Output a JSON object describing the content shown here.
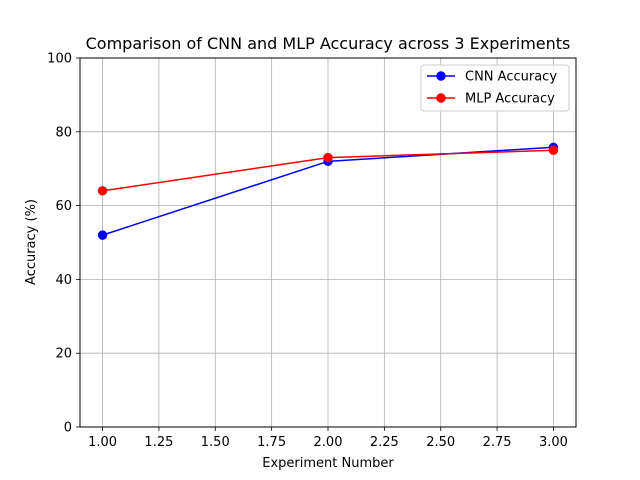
{
  "chart_data": {
    "type": "line",
    "title": "Comparison of CNN and MLP Accuracy across 3 Experiments",
    "xlabel": "Experiment Number",
    "ylabel": "Accuracy (%)",
    "xlim": [
      0.9,
      3.1
    ],
    "ylim": [
      0,
      100
    ],
    "x_ticks": [
      "1.00",
      "1.25",
      "1.50",
      "1.75",
      "2.00",
      "2.25",
      "2.50",
      "2.75",
      "3.00"
    ],
    "y_ticks": [
      "0",
      "20",
      "40",
      "60",
      "80",
      "100"
    ],
    "grid": true,
    "legend_position": "top-right",
    "x": [
      1,
      2,
      3
    ],
    "series": [
      {
        "name": "CNN Accuracy",
        "values": [
          52,
          72,
          75.8
        ],
        "color": "#0000ff",
        "marker": "circle"
      },
      {
        "name": "MLP Accuracy",
        "values": [
          64,
          73,
          75
        ],
        "color": "#ff0000",
        "marker": "circle"
      }
    ]
  }
}
